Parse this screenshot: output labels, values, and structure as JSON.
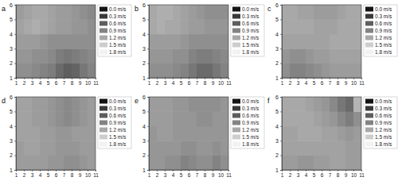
{
  "chart_data": [
    {
      "type": "heatmap",
      "title": "a",
      "xlim": [
        1,
        11
      ],
      "ylim": [
        1,
        6
      ],
      "xticks": [
        1,
        2,
        3,
        4,
        5,
        6,
        7,
        8,
        9,
        10,
        11
      ],
      "yticks": [
        1,
        2,
        3,
        4,
        5,
        6
      ],
      "cells": [
        [
          1.0,
          1.0,
          0.95,
          0.9,
          0.85,
          0.7,
          0.6,
          0.65,
          0.8,
          0.9
        ],
        [
          1.05,
          1.05,
          1.0,
          1.0,
          0.95,
          0.85,
          0.8,
          0.85,
          0.9,
          0.95
        ],
        [
          1.1,
          1.1,
          1.1,
          1.05,
          1.0,
          1.0,
          1.0,
          1.0,
          1.0,
          1.0
        ],
        [
          1.15,
          1.2,
          1.25,
          1.2,
          1.15,
          1.1,
          1.1,
          1.05,
          1.05,
          1.0
        ],
        [
          1.1,
          1.15,
          1.2,
          1.2,
          1.15,
          1.1,
          1.1,
          1.05,
          1.0,
          0.95
        ]
      ],
      "colorbar_range": [
        0,
        1.8
      ],
      "colorbar_ticks": [
        {
          "value": 0,
          "label": "0.0 m/s"
        },
        {
          "value": 0.3,
          "label": "0.3 m/s"
        },
        {
          "value": 0.6,
          "label": "0.6 m/s"
        },
        {
          "value": 0.9,
          "label": "0.9 m/s"
        },
        {
          "value": 1.2,
          "label": "1.2 m/s"
        },
        {
          "value": 1.5,
          "label": "1.5 m/s"
        },
        {
          "value": 1.8,
          "label": "1.8 m/s"
        }
      ]
    },
    {
      "type": "heatmap",
      "title": "b",
      "xlim": [
        1,
        11
      ],
      "ylim": [
        1,
        6
      ],
      "xticks": [
        1,
        2,
        3,
        4,
        5,
        6,
        7,
        8,
        9,
        10,
        11
      ],
      "yticks": [
        1,
        2,
        3,
        4,
        5,
        6
      ],
      "cells": [
        [
          1.0,
          1.0,
          1.0,
          0.95,
          0.9,
          0.8,
          0.7,
          0.7,
          0.8,
          0.9
        ],
        [
          1.05,
          1.05,
          1.05,
          1.0,
          1.0,
          0.9,
          0.85,
          0.85,
          0.9,
          0.95
        ],
        [
          1.1,
          1.1,
          1.1,
          1.1,
          1.05,
          1.0,
          1.0,
          1.0,
          1.0,
          1.0
        ],
        [
          1.2,
          1.25,
          1.2,
          1.2,
          1.15,
          1.1,
          1.1,
          1.05,
          1.05,
          1.05
        ],
        [
          1.2,
          1.25,
          1.25,
          1.2,
          1.15,
          1.1,
          1.05,
          1.0,
          1.0,
          1.0
        ]
      ],
      "colorbar_range": [
        0,
        1.8
      ],
      "colorbar_ticks": [
        {
          "value": 0,
          "label": "0.0 m/s"
        },
        {
          "value": 0.3,
          "label": "0.3 m/s"
        },
        {
          "value": 0.6,
          "label": "0.6 m/s"
        },
        {
          "value": 0.9,
          "label": "0.9 m/s"
        },
        {
          "value": 1.2,
          "label": "1.2 m/s"
        },
        {
          "value": 1.5,
          "label": "1.5 m/s"
        },
        {
          "value": 1.8,
          "label": "1.8 m/s"
        }
      ]
    },
    {
      "type": "heatmap",
      "title": "c",
      "xlim": [
        1,
        11
      ],
      "ylim": [
        1,
        6
      ],
      "xticks": [
        1,
        2,
        3,
        4,
        5,
        6,
        7,
        8,
        9,
        10,
        11
      ],
      "yticks": [
        1,
        2,
        3,
        4,
        5,
        6
      ],
      "cells": [
        [
          1.0,
          0.9,
          0.9,
          0.95,
          1.0,
          1.05,
          1.1,
          1.1,
          1.1,
          1.1
        ],
        [
          1.05,
          1.0,
          1.0,
          1.05,
          1.1,
          1.1,
          1.15,
          1.15,
          1.15,
          1.15
        ],
        [
          1.15,
          1.15,
          1.15,
          1.15,
          1.15,
          1.15,
          1.2,
          1.2,
          1.2,
          1.2
        ],
        [
          1.2,
          1.2,
          1.2,
          1.2,
          1.15,
          1.15,
          1.15,
          1.2,
          1.2,
          1.2
        ],
        [
          1.2,
          1.2,
          1.15,
          1.15,
          1.1,
          1.1,
          1.1,
          1.15,
          1.2,
          1.2
        ]
      ],
      "colorbar_range": [
        0,
        1.8
      ],
      "colorbar_ticks": [
        {
          "value": 0,
          "label": "0.0 m/s"
        },
        {
          "value": 0.3,
          "label": "0.3 m/s"
        },
        {
          "value": 0.6,
          "label": "0.6 m/s"
        },
        {
          "value": 0.9,
          "label": "0.9 m/s"
        },
        {
          "value": 1.2,
          "label": "1.2 m/s"
        },
        {
          "value": 1.5,
          "label": "1.5 m/s"
        },
        {
          "value": 1.8,
          "label": "1.8 m/s"
        }
      ]
    },
    {
      "type": "heatmap",
      "title": "d",
      "xlim": [
        1,
        11
      ],
      "ylim": [
        1,
        6
      ],
      "xticks": [
        1,
        2,
        3,
        4,
        5,
        6,
        7,
        8,
        9,
        10,
        11
      ],
      "yticks": [
        1,
        2,
        3,
        4,
        5,
        6
      ],
      "cells": [
        [
          1.1,
          1.1,
          1.1,
          1.1,
          1.05,
          1.05,
          1.0,
          1.0,
          1.05,
          1.1
        ],
        [
          1.1,
          1.15,
          1.15,
          1.1,
          1.1,
          1.05,
          1.05,
          1.05,
          1.1,
          1.1
        ],
        [
          1.15,
          1.15,
          1.15,
          1.1,
          1.1,
          1.05,
          1.05,
          1.1,
          1.1,
          1.1
        ],
        [
          1.15,
          1.15,
          1.1,
          1.1,
          1.05,
          1.0,
          0.95,
          1.0,
          1.05,
          1.1
        ],
        [
          1.15,
          1.15,
          1.1,
          1.1,
          1.05,
          1.0,
          0.95,
          1.0,
          1.05,
          1.1
        ]
      ],
      "colorbar_range": [
        0,
        1.8
      ],
      "colorbar_ticks": [
        {
          "value": 0,
          "label": "0.0 m/s"
        },
        {
          "value": 0.3,
          "label": "0.3 m/s"
        },
        {
          "value": 0.6,
          "label": "0.6 m/s"
        },
        {
          "value": 0.9,
          "label": "0.9 m/s"
        },
        {
          "value": 1.2,
          "label": "1.2 m/s"
        },
        {
          "value": 1.5,
          "label": "1.5 m/s"
        },
        {
          "value": 1.8,
          "label": "1.8 m/s"
        }
      ]
    },
    {
      "type": "heatmap",
      "title": "e",
      "xlim": [
        1,
        11
      ],
      "ylim": [
        1,
        6
      ],
      "xticks": [
        1,
        2,
        3,
        4,
        5,
        6,
        7,
        8,
        9,
        10,
        11
      ],
      "yticks": [
        1,
        2,
        3,
        4,
        5,
        6
      ],
      "cells": [
        [
          1.05,
          1.05,
          1.0,
          1.0,
          0.9,
          0.95,
          1.0,
          1.0,
          0.9,
          1.0
        ],
        [
          1.05,
          1.05,
          1.05,
          1.05,
          1.0,
          1.0,
          1.05,
          1.05,
          1.0,
          1.05
        ],
        [
          1.05,
          1.1,
          1.1,
          1.05,
          1.05,
          1.05,
          1.05,
          1.05,
          1.05,
          1.05
        ],
        [
          1.1,
          1.1,
          1.1,
          1.05,
          1.05,
          1.05,
          1.0,
          1.0,
          1.05,
          1.05
        ],
        [
          1.1,
          1.1,
          1.1,
          1.05,
          1.05,
          1.0,
          1.0,
          1.0,
          1.0,
          1.05
        ]
      ],
      "colorbar_range": [
        0,
        1.8
      ],
      "colorbar_ticks": [
        {
          "value": 0,
          "label": "0.0 m/s"
        },
        {
          "value": 0.3,
          "label": "0.3 m/s"
        },
        {
          "value": 0.6,
          "label": "0.6 m/s"
        },
        {
          "value": 0.9,
          "label": "0.9 m/s"
        },
        {
          "value": 1.2,
          "label": "1.2 m/s"
        },
        {
          "value": 1.5,
          "label": "1.5 m/s"
        },
        {
          "value": 1.8,
          "label": "1.8 m/s"
        }
      ]
    },
    {
      "type": "heatmap",
      "title": "f",
      "xlim": [
        1,
        11
      ],
      "ylim": [
        1,
        6
      ],
      "xticks": [
        1,
        2,
        3,
        4,
        5,
        6,
        7,
        8,
        9,
        10,
        11
      ],
      "yticks": [
        1,
        2,
        3,
        4,
        5,
        6
      ],
      "cells": [
        [
          1.1,
          1.1,
          1.05,
          1.05,
          1.1,
          1.1,
          1.15,
          1.15,
          1.1,
          1.1
        ],
        [
          1.15,
          1.15,
          1.15,
          1.15,
          1.15,
          1.15,
          1.15,
          1.15,
          1.1,
          1.1
        ],
        [
          1.15,
          1.15,
          1.2,
          1.2,
          1.2,
          1.15,
          1.15,
          1.1,
          1.05,
          1.1
        ],
        [
          1.2,
          1.2,
          1.2,
          1.2,
          1.15,
          1.1,
          1.05,
          0.95,
          0.85,
          1.0
        ],
        [
          1.2,
          1.2,
          1.2,
          1.15,
          1.1,
          1.05,
          0.95,
          0.8,
          0.7,
          1.3
        ]
      ],
      "colorbar_range": [
        0,
        1.8
      ],
      "colorbar_ticks": [
        {
          "value": 0,
          "label": "0.0 m/s"
        },
        {
          "value": 0.3,
          "label": "0.3 m/s"
        },
        {
          "value": 0.6,
          "label": "0.6 m/s"
        },
        {
          "value": 0.9,
          "label": "0.9 m/s"
        },
        {
          "value": 1.2,
          "label": "1.2 m/s"
        },
        {
          "value": 1.5,
          "label": "1.5 m/s"
        },
        {
          "value": 1.8,
          "label": "1.8 m/s"
        }
      ]
    }
  ]
}
